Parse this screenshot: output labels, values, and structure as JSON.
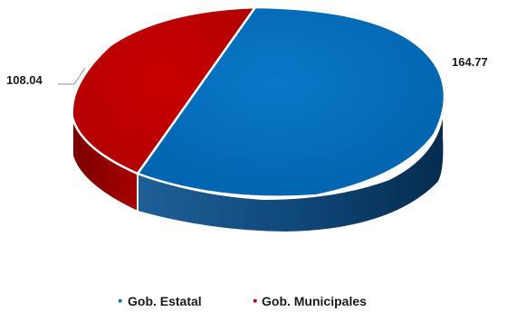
{
  "chart_data": {
    "type": "pie",
    "categories": [
      "Gob. Estatal",
      "Gob. Municipales"
    ],
    "values": [
      164.77,
      108.04
    ],
    "value_labels": [
      "164.77",
      "108.04"
    ],
    "legend": {
      "placement": "bottom",
      "items": [
        {
          "label": "Gob. Estatal",
          "color": "#0070C0"
        },
        {
          "label": "Gob. Municipales",
          "color": "#C00000"
        }
      ]
    },
    "colors": {
      "estatal_top": "#0070C0",
      "estatal_side": "#0B3D6B",
      "municipales_top": "#C00000",
      "municipales_side": "#8E0000",
      "outline": "#ffffff"
    }
  }
}
